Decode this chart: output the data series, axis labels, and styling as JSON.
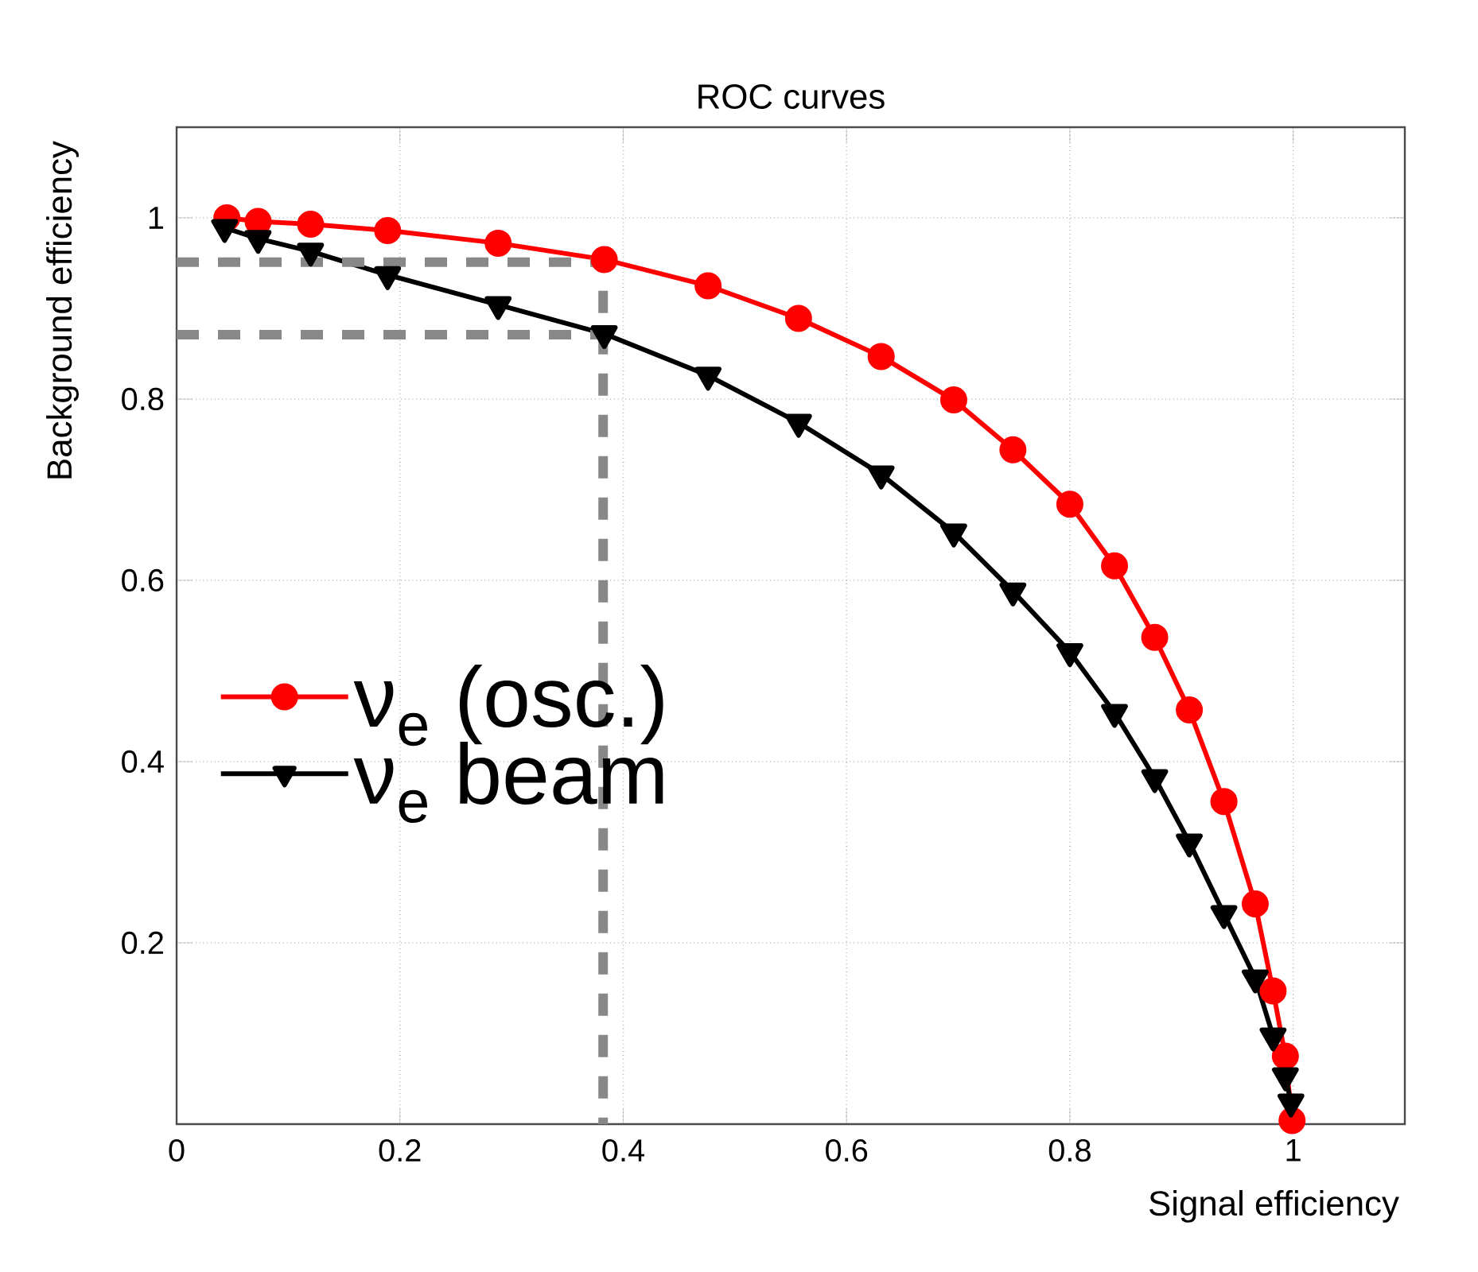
{
  "chart_data": {
    "type": "line",
    "title": "ROC curves",
    "xlabel": "Signal efficiency",
    "ylabel": "Background efficiency",
    "xlim": [
      0,
      1.1
    ],
    "ylim": [
      0,
      1.1
    ],
    "xticks": [
      0,
      0.2,
      0.4,
      0.6,
      0.8,
      1
    ],
    "yticks": [
      0.2,
      0.4,
      0.6,
      0.8,
      1
    ],
    "grid": true,
    "legend": "left",
    "series": [
      {
        "name": "ν$_{e}$ (osc.)",
        "color": "#ff0000",
        "marker": "circle",
        "line_style": "solid",
        "x": [
          0.045,
          0.073,
          0.12,
          0.189,
          0.288,
          0.383,
          0.476,
          0.557,
          0.631,
          0.696,
          0.749,
          0.8,
          0.84,
          0.876,
          0.907,
          0.938,
          0.966,
          0.982,
          0.993,
          0.998,
          0.999
        ],
        "values": [
          1.0,
          0.996,
          0.993,
          0.986,
          0.972,
          0.954,
          0.925,
          0.889,
          0.847,
          0.799,
          0.744,
          0.684,
          0.616,
          0.537,
          0.457,
          0.356,
          0.243,
          0.147,
          0.075,
          null,
          0.004
        ]
      },
      {
        "name": "ν$_{e}$ beam",
        "color": "#000000",
        "marker": "triangle",
        "line_style": "solid",
        "x": [
          0.043,
          0.073,
          0.12,
          0.189,
          0.288,
          0.383,
          0.476,
          0.557,
          0.631,
          0.696,
          0.749,
          0.8,
          0.84,
          0.876,
          0.907,
          0.938,
          0.966,
          0.982,
          0.993,
          0.998
        ],
        "values": [
          0.989,
          0.977,
          0.963,
          0.937,
          0.904,
          0.872,
          0.826,
          0.774,
          0.717,
          0.653,
          0.588,
          0.521,
          0.454,
          0.382,
          0.311,
          0.232,
          0.161,
          0.097,
          0.053,
          0.024
        ]
      },
      {
        "color": "#888888",
        "marker": "none",
        "line_style": "dashed",
        "x": [
          0,
          0.382,
          0.382
        ],
        "values": [
          0.951,
          0.951,
          0
        ]
      },
      {
        "color": "#888888",
        "marker": "none",
        "line_style": "dashed",
        "x": [
          0,
          0.382
        ],
        "values": [
          0.871,
          0.871
        ]
      }
    ]
  }
}
